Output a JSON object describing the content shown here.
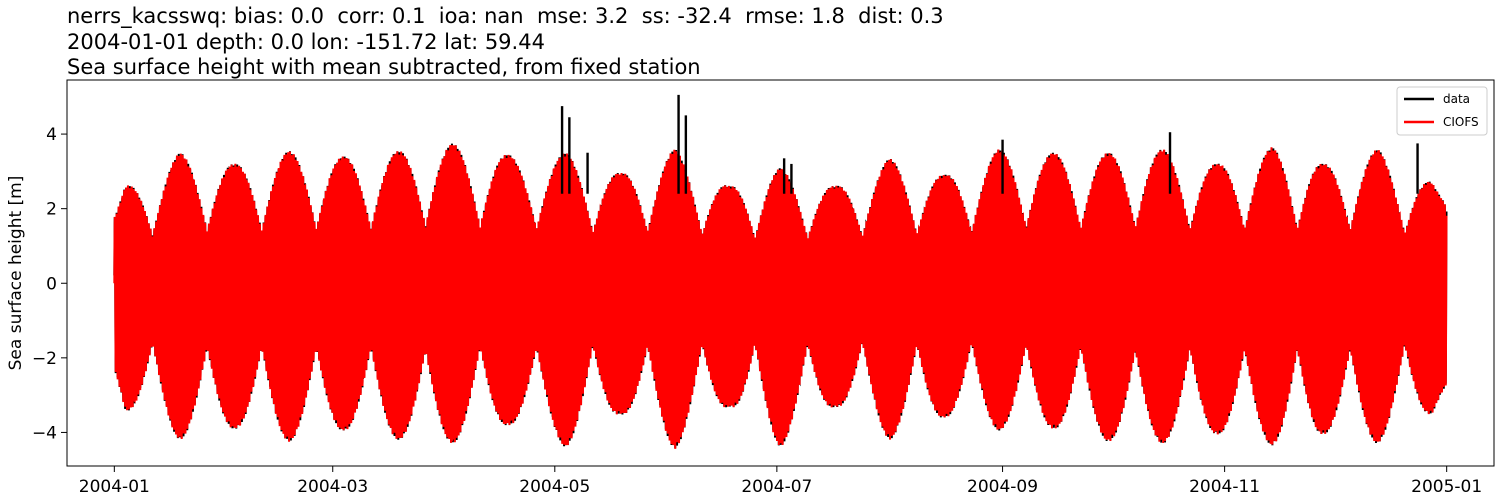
{
  "title": {
    "line1": "nerrs_kacsswq: bias: 0.0  corr: 0.1  ioa: nan  mse: 3.2  ss: -32.4  rmse: 1.8  dist: 0.3",
    "line2": "2004-01-01 depth: 0.0 lon: -151.72 lat: 59.44",
    "line3": "Sea surface height with mean subtracted, from fixed station"
  },
  "chart_data": {
    "type": "line",
    "title": "nerrs_kacsswq: bias: 0.0  corr: 0.1  ioa: nan  mse: 3.2  ss: -32.4  rmse: 1.8  dist: 0.3 / 2004-01-01 depth: 0.0 lon: -151.72 lat: 59.44 / Sea surface height with mean subtracted, from fixed station",
    "xlabel": "",
    "ylabel": "Sea surface height [m]",
    "x_type": "date",
    "xlim": [
      "2003-12-19",
      "2005-01-14"
    ],
    "ylim": [
      -4.9,
      5.45
    ],
    "x_ticks": [
      "2004-01",
      "2004-03",
      "2004-05",
      "2004-07",
      "2004-09",
      "2004-11",
      "2005-01"
    ],
    "y_ticks": [
      -4,
      -2,
      0,
      2,
      4
    ],
    "grid": false,
    "legend_position": "top-right",
    "series": [
      {
        "name": "data",
        "color": "#000000",
        "start_date": "2004-01-01",
        "end_date": "2004-12-31",
        "description": "tidal sea surface height with spikes",
        "spikes": [
          {
            "date": "2004-05-03",
            "value": 4.75
          },
          {
            "date": "2004-05-05",
            "value": 4.45
          },
          {
            "date": "2004-05-10",
            "value": 3.5
          },
          {
            "date": "2004-06-04",
            "value": 5.05
          },
          {
            "date": "2004-06-06",
            "value": 4.5
          },
          {
            "date": "2004-07-03",
            "value": 3.35
          },
          {
            "date": "2004-07-05",
            "value": 3.2
          },
          {
            "date": "2004-09-01",
            "value": 3.85
          },
          {
            "date": "2004-10-17",
            "value": 4.05
          },
          {
            "date": "2004-12-24",
            "value": 3.75
          }
        ]
      },
      {
        "name": "CIOFS",
        "color": "#ff0000",
        "start_date": "2004-01-01",
        "end_date": "2004-12-31",
        "spring_tide_envelope": [
          {
            "date": "2004-01-04",
            "max": 2.6,
            "min": -3.4
          },
          {
            "date": "2004-01-19",
            "max": 3.5,
            "min": -4.2
          },
          {
            "date": "2004-02-03",
            "max": 3.2,
            "min": -3.9
          },
          {
            "date": "2004-02-18",
            "max": 3.55,
            "min": -4.25
          },
          {
            "date": "2004-03-04",
            "max": 3.4,
            "min": -3.95
          },
          {
            "date": "2004-03-19",
            "max": 3.55,
            "min": -4.2
          },
          {
            "date": "2004-04-03",
            "max": 3.75,
            "min": -4.3
          },
          {
            "date": "2004-04-18",
            "max": 3.45,
            "min": -3.8
          },
          {
            "date": "2004-05-04",
            "max": 3.5,
            "min": -4.4
          },
          {
            "date": "2004-05-19",
            "max": 2.95,
            "min": -3.5
          },
          {
            "date": "2004-06-03",
            "max": 3.6,
            "min": -4.45
          },
          {
            "date": "2004-06-18",
            "max": 2.6,
            "min": -3.3
          },
          {
            "date": "2004-07-02",
            "max": 3.1,
            "min": -4.4
          },
          {
            "date": "2004-07-17",
            "max": 2.6,
            "min": -3.3
          },
          {
            "date": "2004-08-01",
            "max": 3.35,
            "min": -4.2
          },
          {
            "date": "2004-08-16",
            "max": 2.9,
            "min": -3.6
          },
          {
            "date": "2004-08-31",
            "max": 3.6,
            "min": -3.95
          },
          {
            "date": "2004-09-15",
            "max": 3.5,
            "min": -3.9
          },
          {
            "date": "2004-09-30",
            "max": 3.5,
            "min": -4.25
          },
          {
            "date": "2004-10-15",
            "max": 3.6,
            "min": -4.3
          },
          {
            "date": "2004-10-30",
            "max": 3.2,
            "min": -4.05
          },
          {
            "date": "2004-11-14",
            "max": 3.65,
            "min": -4.35
          },
          {
            "date": "2004-11-28",
            "max": 3.2,
            "min": -4.05
          },
          {
            "date": "2004-12-13",
            "max": 3.6,
            "min": -4.3
          },
          {
            "date": "2004-12-28",
            "max": 2.7,
            "min": -3.5
          }
        ]
      }
    ]
  },
  "legend": {
    "entries": [
      {
        "label": "data",
        "color": "#000000"
      },
      {
        "label": "CIOFS",
        "color": "#ff0000"
      }
    ]
  },
  "axes": {
    "ylabel": "Sea surface height [m]",
    "x_tick_labels": [
      "2004-01",
      "2004-03",
      "2004-05",
      "2004-07",
      "2004-09",
      "2004-11",
      "2005-01"
    ],
    "y_tick_labels": [
      "−4",
      "−2",
      "0",
      "2",
      "4"
    ]
  }
}
